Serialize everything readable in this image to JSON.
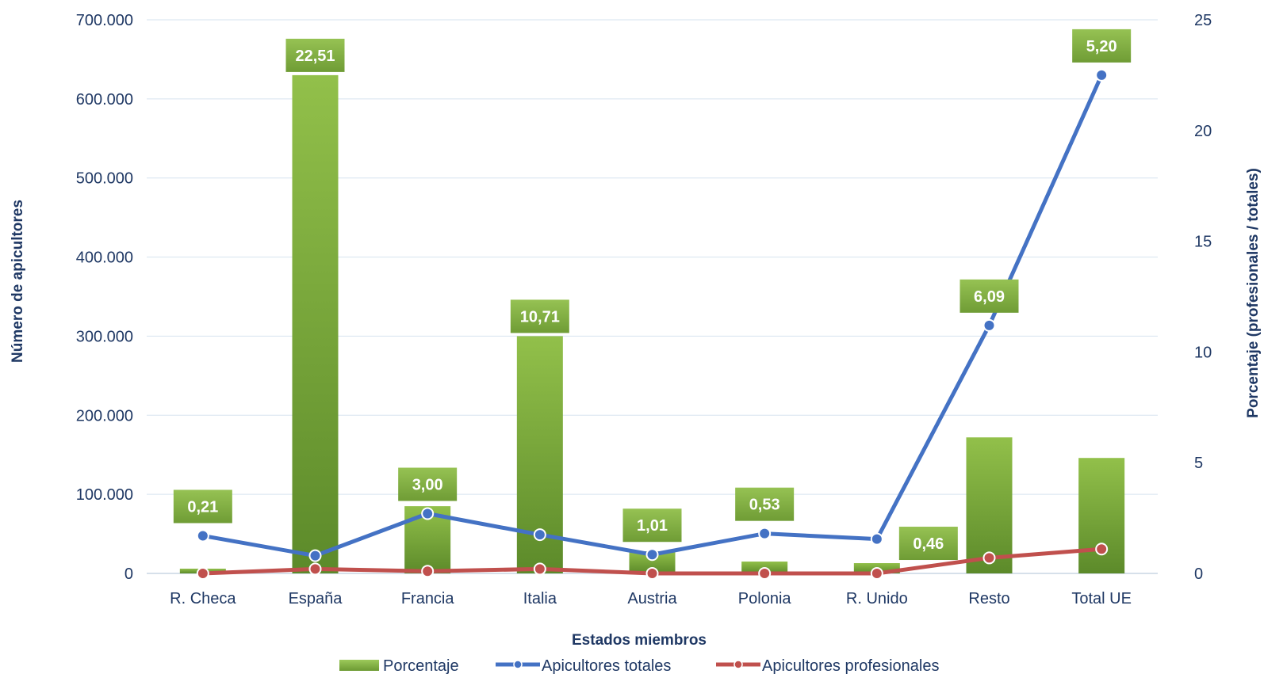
{
  "chart_data": {
    "type": "bar",
    "categories": [
      "R. Checa",
      "España",
      "Francia",
      "Italia",
      "Austria",
      "Polonia",
      "R. Unido",
      "Resto",
      "Total UE"
    ],
    "xlabel": "Estados miembros",
    "ylabel": "Número de apicultores",
    "y2label": "Porcentaje (profesionales / totales)",
    "ylim": [
      0,
      700000
    ],
    "y2lim": [
      0,
      25
    ],
    "yticks": [
      "0",
      "100.000",
      "200.000",
      "300.000",
      "400.000",
      "500.000",
      "600.000",
      "700.000"
    ],
    "y2ticks": [
      "0",
      "5",
      "10",
      "15",
      "20",
      "25"
    ],
    "grid": true,
    "legend_position": "bottom",
    "series": [
      {
        "name": "Porcentaje",
        "kind": "bar",
        "axis": "left",
        "color": "#7cae3a",
        "values": [
          6000,
          630000,
          85000,
          300000,
          28000,
          15000,
          13000,
          172000,
          146000
        ],
        "labels": [
          "0,21",
          "22,51",
          "3,00",
          "10,71",
          "1,01",
          "0,53",
          "0,46",
          "6,09",
          "5,20"
        ]
      },
      {
        "name": "Apicultores totales",
        "kind": "line",
        "axis": "right",
        "color": "#4472c4",
        "values": [
          1.7,
          0.8,
          2.7,
          1.75,
          0.85,
          1.8,
          1.55,
          11.2,
          22.5
        ]
      },
      {
        "name": "Apicultores profesionales",
        "kind": "line",
        "axis": "right",
        "color": "#c0504d",
        "values": [
          0.0,
          0.2,
          0.1,
          0.2,
          0.0,
          0.0,
          0.0,
          0.7,
          1.1
        ]
      }
    ]
  }
}
